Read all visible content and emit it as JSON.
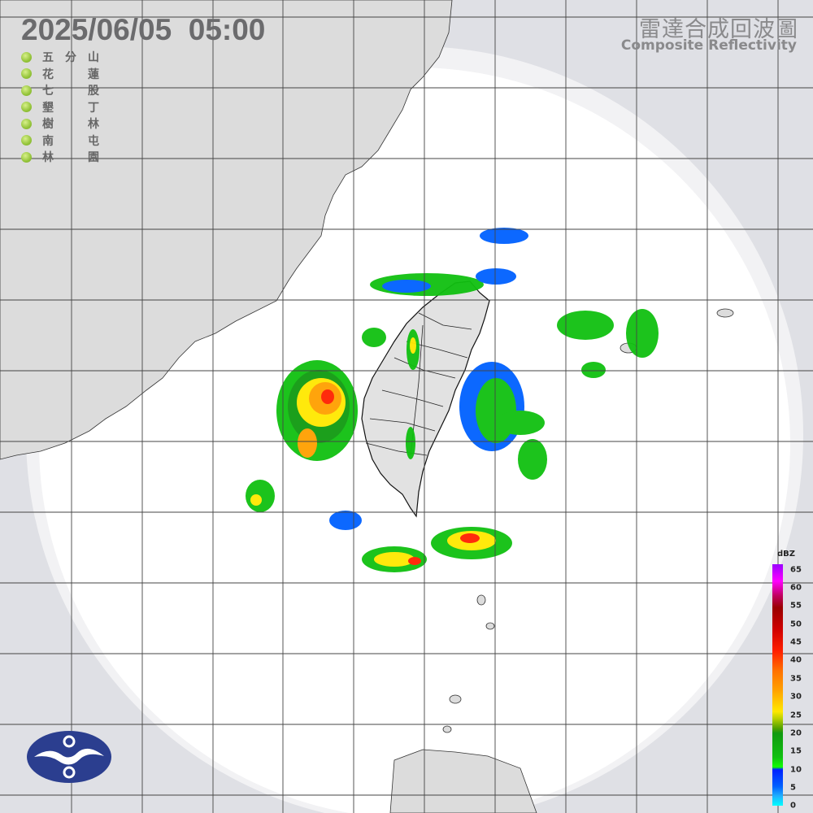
{
  "timestamp": "2025/06/05  05:00",
  "title_zh": "雷達合成回波圖",
  "title_en": "Composite Reflectivity",
  "stations": [
    {
      "a": "五",
      "b": "分",
      "c": "山"
    },
    {
      "a": "花",
      "b": "",
      "c": "蓮"
    },
    {
      "a": "七",
      "b": "",
      "c": "股"
    },
    {
      "a": "墾",
      "b": "",
      "c": "丁"
    },
    {
      "a": "樹",
      "b": "",
      "c": "林"
    },
    {
      "a": "南",
      "b": "",
      "c": "屯"
    },
    {
      "a": "林",
      "b": "",
      "c": "園"
    }
  ],
  "station_status_color": "#94c43a",
  "colorbar": {
    "unit": "dBZ",
    "ticks": [
      "65",
      "60",
      "55",
      "50",
      "45",
      "40",
      "35",
      "30",
      "25",
      "20",
      "15",
      "10",
      "5",
      "0"
    ]
  },
  "logo": "Central Weather Administration emblem",
  "colors": {
    "land": "#e0e0e0",
    "sea_in_range": "#ffffff",
    "out_of_range": "#dfe0e5",
    "grid": "#555555"
  }
}
